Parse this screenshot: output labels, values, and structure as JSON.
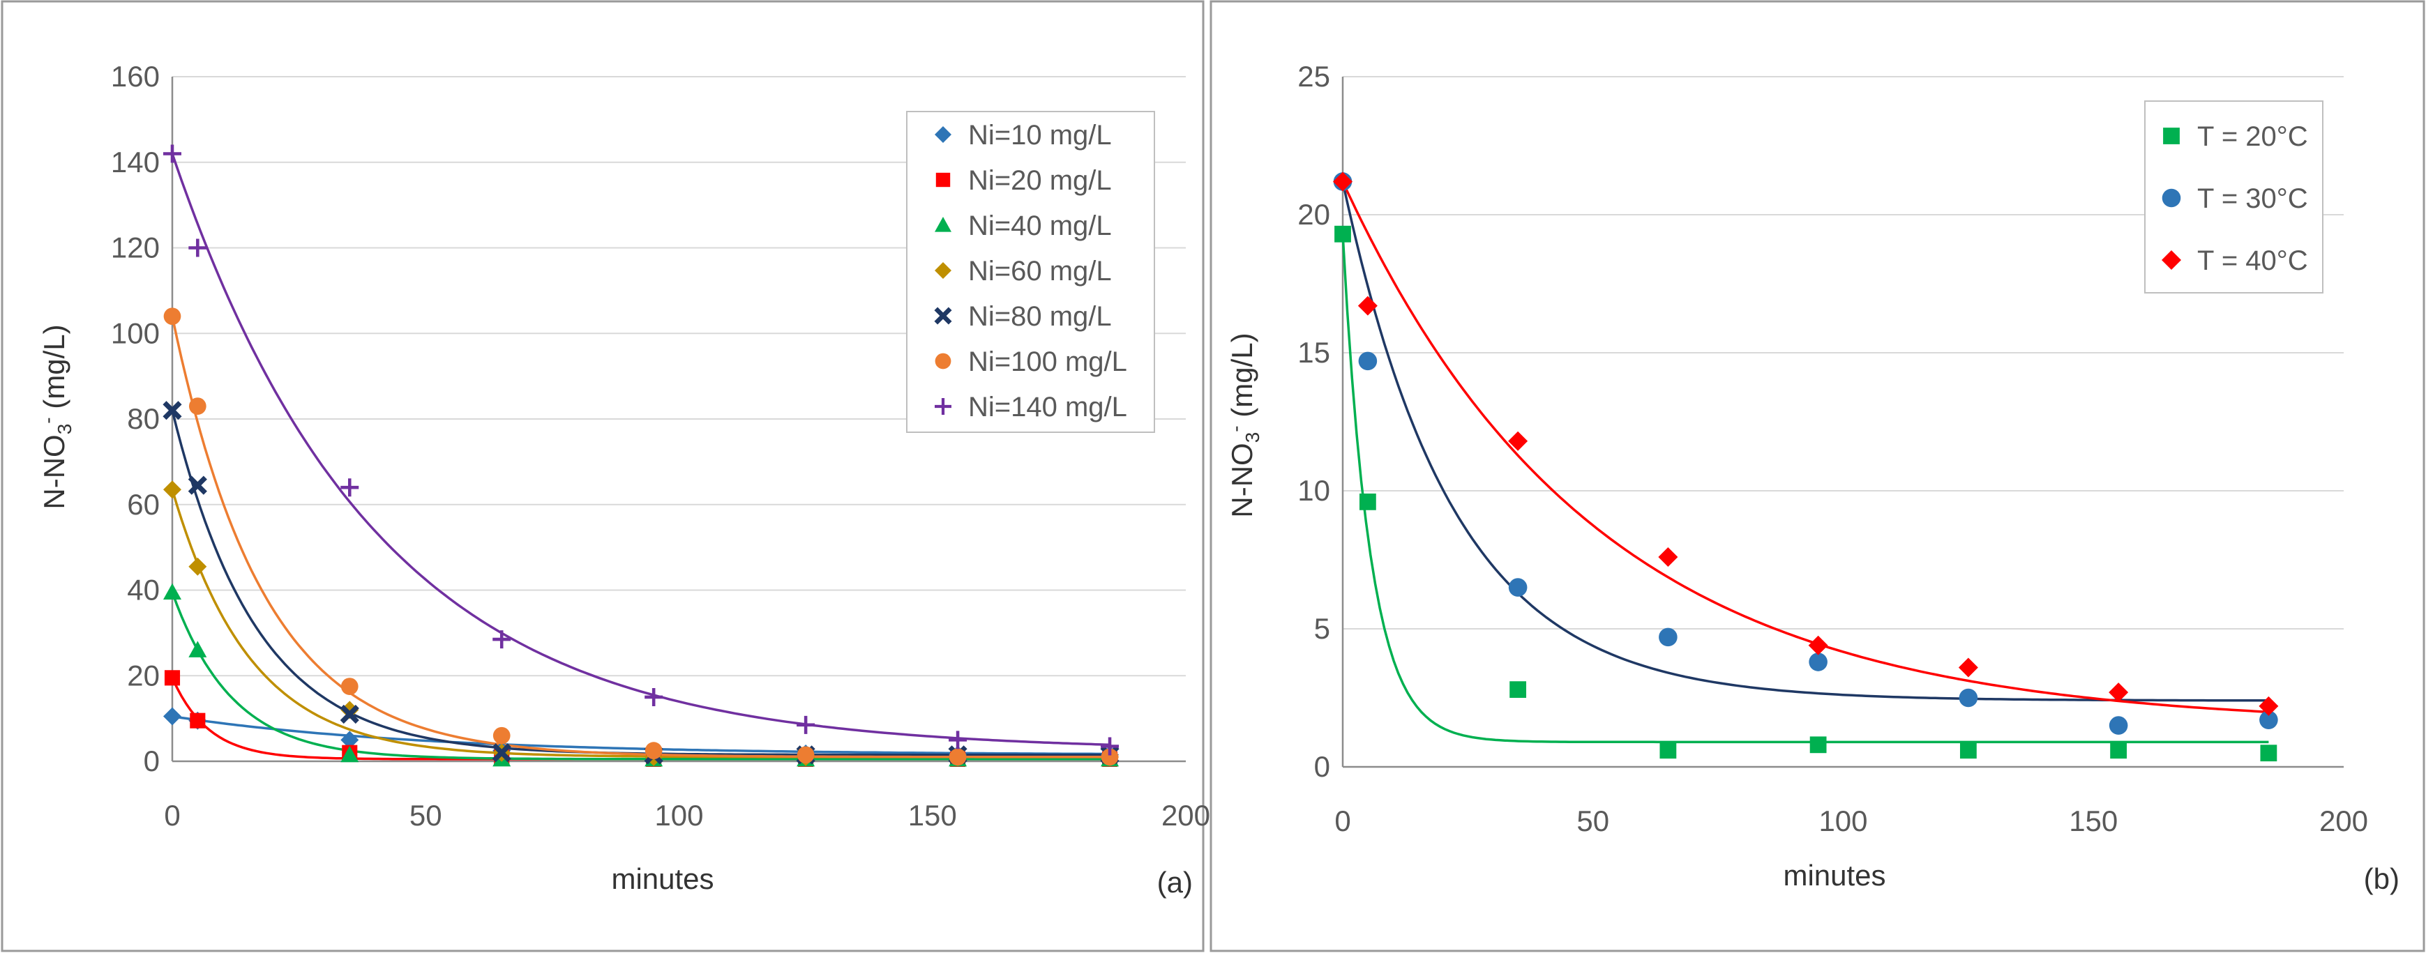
{
  "colors": {
    "frame": "#9a9a9a",
    "grid": "#d9d9d9",
    "axis": "#8c8c8c",
    "tick_text": "#595959",
    "label_text": "#333333"
  },
  "chart_data": [
    {
      "type": "scatter",
      "panel_label": "(a)",
      "xlabel": "minutes",
      "ylabel": "N-NO3- (mg/L)",
      "ylabel_main": "N-NO",
      "ylabel_sub": "3",
      "ylabel_sup": "-",
      "ylabel_units": " (mg/L)",
      "xlim": [
        0,
        200
      ],
      "ylim": [
        0,
        160
      ],
      "xticks": [
        0,
        50,
        100,
        150,
        200
      ],
      "yticks": [
        0,
        20,
        40,
        60,
        80,
        100,
        120,
        140,
        160
      ],
      "grid": true,
      "legend_position": "top-right",
      "series": [
        {
          "name": "Ni=10 mg/L",
          "marker": "diamond",
          "color": "#2e75b6",
          "x": [
            0,
            5,
            35,
            65,
            95,
            125,
            155,
            185
          ],
          "y": [
            10.5,
            9.5,
            5.0,
            2.5,
            2.0,
            1.8,
            1.5,
            1.5
          ],
          "fit": {
            "y0": 10.5,
            "yinf": 1.5,
            "k": 0.02
          }
        },
        {
          "name": "Ni=20 mg/L",
          "marker": "square",
          "color": "#ff0000",
          "x": [
            0,
            5,
            35,
            65,
            95,
            125,
            155,
            185
          ],
          "y": [
            19.5,
            9.5,
            2.0,
            1.0,
            0.5,
            0.5,
            0.5,
            0.5
          ],
          "fit": {
            "y0": 19.5,
            "yinf": 0.5,
            "k": 0.14
          }
        },
        {
          "name": "Ni=40 mg/L",
          "marker": "triangle",
          "color": "#00b050",
          "x": [
            0,
            5,
            35,
            65,
            95,
            125,
            155,
            185
          ],
          "y": [
            39.5,
            26.0,
            1.5,
            0.5,
            0.5,
            0.5,
            0.5,
            0.5
          ],
          "fit": {
            "y0": 39.5,
            "yinf": 0.5,
            "k": 0.085
          }
        },
        {
          "name": "Ni=60 mg/L",
          "marker": "diamond",
          "color": "#bf8f00",
          "x": [
            0,
            5,
            35,
            65,
            95,
            125,
            155,
            185
          ],
          "y": [
            63.5,
            45.5,
            12.0,
            2.0,
            1.0,
            1.0,
            1.0,
            1.0
          ],
          "fit": {
            "y0": 63.5,
            "yinf": 1.0,
            "k": 0.065
          }
        },
        {
          "name": "Ni=80 mg/L",
          "marker": "x",
          "color": "#1f3864",
          "x": [
            0,
            5,
            35,
            65,
            95,
            125,
            155,
            185
          ],
          "y": [
            82.0,
            64.5,
            11.0,
            2.0,
            1.5,
            1.5,
            1.5,
            1.5
          ],
          "fit": {
            "y0": 82.0,
            "yinf": 1.5,
            "k": 0.06
          }
        },
        {
          "name": "Ni=100 mg/L",
          "marker": "circle",
          "color": "#ed7d31",
          "x": [
            0,
            5,
            35,
            65,
            95,
            125,
            155,
            185
          ],
          "y": [
            104.0,
            83.0,
            17.5,
            6.0,
            2.5,
            1.5,
            1.0,
            1.0
          ],
          "fit": {
            "y0": 104.0,
            "yinf": 1.0,
            "k": 0.055
          }
        },
        {
          "name": "Ni=140 mg/L",
          "marker": "plus",
          "color": "#7030a0",
          "x": [
            0,
            5,
            35,
            65,
            95,
            125,
            155,
            185
          ],
          "y": [
            142.0,
            120.0,
            64.0,
            28.5,
            15.0,
            8.5,
            5.0,
            3.5
          ],
          "fit": {
            "y0": 142.0,
            "yinf": 2.5,
            "k": 0.025
          }
        }
      ]
    },
    {
      "type": "scatter",
      "panel_label": "(b)",
      "xlabel": "minutes",
      "ylabel": "N-NO3- (mg/L)",
      "ylabel_main": "N-NO",
      "ylabel_sub": "3",
      "ylabel_sup": "-",
      "ylabel_units": " (mg/L)",
      "xlim": [
        0,
        200
      ],
      "ylim": [
        0,
        25
      ],
      "xticks": [
        0,
        50,
        100,
        150,
        200
      ],
      "yticks": [
        0,
        5,
        10,
        15,
        20,
        25
      ],
      "grid": true,
      "legend_position": "top-right",
      "series": [
        {
          "name": "T = 20°C",
          "marker": "square",
          "color": "#00b050",
          "line_color": "#00b050",
          "x": [
            0,
            5,
            35,
            65,
            95,
            125,
            155,
            185
          ],
          "y": [
            19.3,
            9.6,
            2.8,
            0.6,
            0.8,
            0.6,
            0.6,
            0.5
          ],
          "fit": {
            "y0": 19.3,
            "yinf": 0.9,
            "k": 0.18
          }
        },
        {
          "name": "T = 30°C",
          "marker": "circle",
          "color": "#2e75b6",
          "line_color": "#1f3864",
          "x": [
            0,
            5,
            35,
            65,
            95,
            125,
            155,
            185
          ],
          "y": [
            21.2,
            14.7,
            6.5,
            4.7,
            3.8,
            2.5,
            1.5,
            1.7
          ],
          "fit": {
            "y0": 21.2,
            "yinf": 2.4,
            "k": 0.045
          }
        },
        {
          "name": "T = 40°C",
          "marker": "diamond",
          "color": "#ff0000",
          "line_color": "#ff0000",
          "x": [
            0,
            5,
            35,
            65,
            95,
            125,
            155,
            185
          ],
          "y": [
            21.2,
            16.7,
            11.8,
            7.6,
            4.4,
            3.6,
            2.7,
            2.2
          ],
          "fit": {
            "y0": 21.2,
            "yinf": 1.5,
            "k": 0.02
          }
        }
      ]
    }
  ]
}
